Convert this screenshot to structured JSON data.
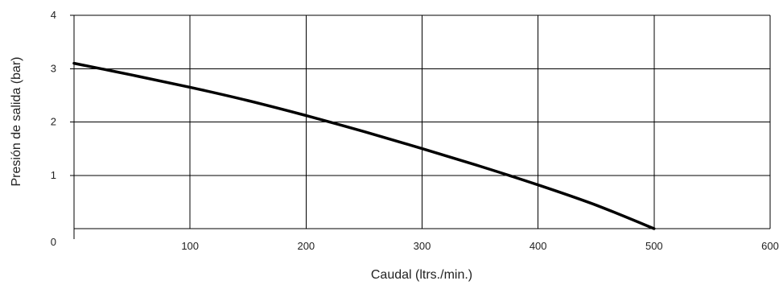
{
  "chart_data": {
    "type": "line",
    "xlabel": "Caudal (ltrs./min.)",
    "ylabel": "Presión de salida (bar)",
    "xlim": [
      0,
      600
    ],
    "ylim": [
      0,
      4
    ],
    "x_ticks": [
      100,
      200,
      300,
      400,
      500,
      600
    ],
    "y_ticks": [
      0,
      1,
      2,
      3,
      4
    ],
    "grid": true,
    "colors": {
      "curve": "#000000",
      "grid": "#000000"
    },
    "series": [
      {
        "x": [
          0,
          50,
          100,
          150,
          200,
          250,
          300,
          350,
          400,
          450,
          500
        ],
        "values": [
          3.1,
          2.88,
          2.65,
          2.4,
          2.12,
          1.82,
          1.5,
          1.17,
          0.82,
          0.44,
          0.0
        ]
      }
    ]
  }
}
